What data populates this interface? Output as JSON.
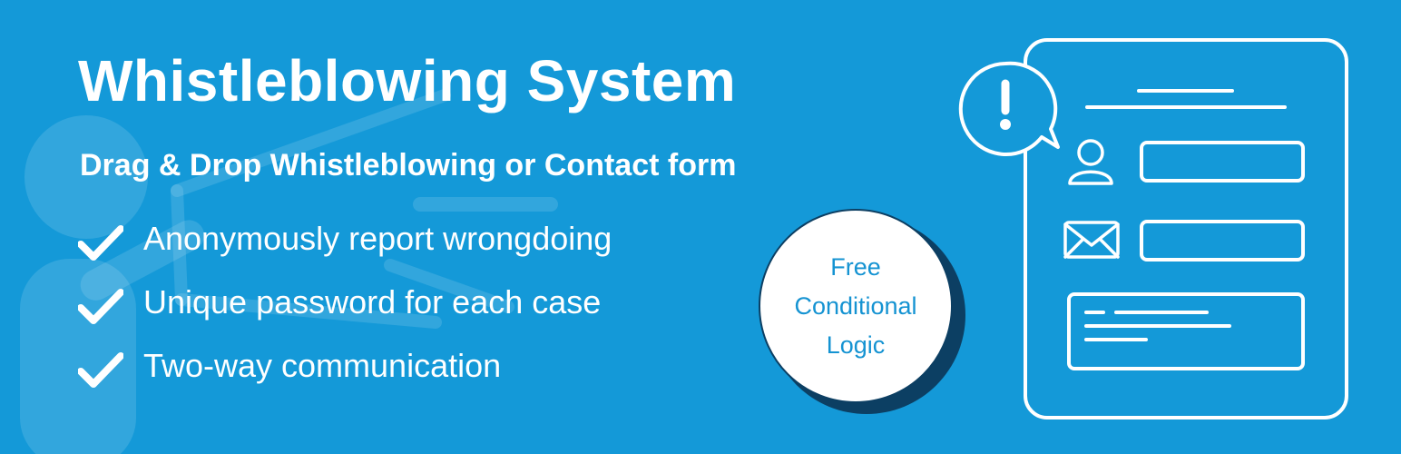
{
  "colors": {
    "background": "#1499d8",
    "text": "#ffffff",
    "badge_text": "#1593d2",
    "badge_shadow": "#0c3f63"
  },
  "title": "Whistleblowing System",
  "subtitle": "Drag & Drop Whistleblowing or Contact form",
  "features": [
    {
      "icon": "checkmark-icon",
      "text": "Anonymously report wrongdoing"
    },
    {
      "icon": "checkmark-icon",
      "text": "Unique password for each case"
    },
    {
      "icon": "checkmark-icon",
      "text": "Two-way communication"
    }
  ],
  "badge": {
    "line1": "Free",
    "line2": "Conditional",
    "line3": "Logic"
  },
  "icons": {
    "background": "megaphone-person-icon",
    "form": "form-document-icon",
    "alert": "exclamation-speech-bubble-icon",
    "user": "user-icon",
    "mail": "envelope-icon"
  }
}
